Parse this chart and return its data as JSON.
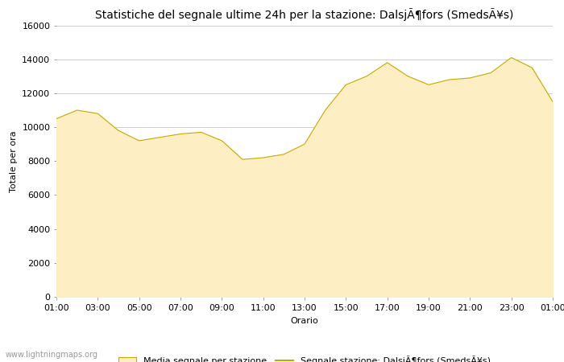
{
  "title": "Statistiche del segnale ultime 24h per la stazione: DalsjÃ¶fors (SmedsÃ¥s)",
  "xlabel": "Orario",
  "ylabel": "Totale per ora",
  "fill_color": "#fdefc3",
  "line_color": "#c8a800",
  "background_color": "#ffffff",
  "grid_color": "#bbbbbb",
  "ylim": [
    0,
    16000
  ],
  "yticks": [
    0,
    2000,
    4000,
    6000,
    8000,
    10000,
    12000,
    14000,
    16000
  ],
  "x_labels": [
    "01:00",
    "03:00",
    "05:00",
    "07:00",
    "09:00",
    "11:00",
    "13:00",
    "15:00",
    "17:00",
    "19:00",
    "21:00",
    "23:00",
    "01:00"
  ],
  "hours": [
    1,
    2,
    3,
    4,
    5,
    6,
    7,
    8,
    9,
    10,
    11,
    12,
    13,
    14,
    15,
    16,
    17,
    18,
    19,
    20,
    21,
    22,
    23,
    24,
    25
  ],
  "values": [
    10500,
    11000,
    10800,
    9800,
    9200,
    9400,
    9600,
    9700,
    9200,
    8100,
    8200,
    8400,
    9000,
    11000,
    12500,
    13000,
    13800,
    13000,
    12500,
    12800,
    12900,
    13200,
    14100,
    13500,
    11500
  ],
  "legend_fill_label": "Media segnale per stazione",
  "legend_line_label": "Segnale stazione: DalsjÃ¶fors (SmedsÃ¥s)",
  "watermark": "www.lightningmaps.org",
  "title_fontsize": 10,
  "axis_fontsize": 8,
  "tick_fontsize": 8
}
